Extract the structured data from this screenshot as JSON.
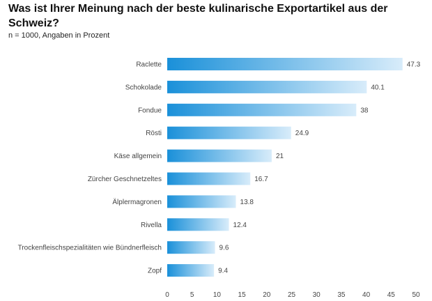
{
  "header": {
    "title": "Was ist Ihrer Meinung nach der beste kulinarische Exportartikel aus der Schweiz?",
    "subtitle": "n = 1000, Angaben in Prozent"
  },
  "colors": {
    "bar_start": "#1a90d9",
    "bar_end": "#d8ecfa"
  },
  "chart_data": {
    "type": "bar",
    "orientation": "horizontal",
    "categories": [
      "Raclette",
      "Schokolade",
      "Fondue",
      "Rösti",
      "Käse allgemein",
      "Zürcher Geschnetzeltes",
      "Älplermagronen",
      "Rivella",
      "Trockenfleischspezialitäten wie Bündnerfleisch",
      "Zopf"
    ],
    "values": [
      47.3,
      40.1,
      38,
      24.9,
      21,
      16.7,
      13.8,
      12.4,
      9.6,
      9.4
    ],
    "value_labels": [
      "47.3",
      "40.1",
      "38",
      "24.9",
      "21",
      "16.7",
      "13.8",
      "12.4",
      "9.6",
      "9.4"
    ],
    "xlim": [
      0,
      50
    ],
    "xticks": [
      0,
      5,
      10,
      15,
      20,
      25,
      30,
      35,
      40,
      45,
      50
    ],
    "grid": false,
    "legend": "none"
  }
}
